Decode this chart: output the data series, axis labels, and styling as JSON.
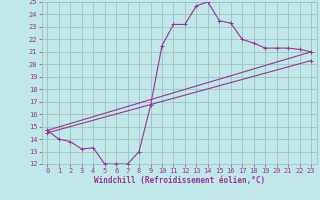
{
  "xlabel": "Windchill (Refroidissement éolien,°C)",
  "bg_color": "#c0e8e8",
  "line_color": "#993399",
  "grid_color": "#99bbbb",
  "xlim": [
    -0.5,
    23.5
  ],
  "ylim": [
    12,
    25
  ],
  "xticks": [
    0,
    1,
    2,
    3,
    4,
    5,
    6,
    7,
    8,
    9,
    10,
    11,
    12,
    13,
    14,
    15,
    16,
    17,
    18,
    19,
    20,
    21,
    22,
    23
  ],
  "yticks": [
    12,
    13,
    14,
    15,
    16,
    17,
    18,
    19,
    20,
    21,
    22,
    23,
    24,
    25
  ],
  "series1_x": [
    0,
    1,
    2,
    3,
    4,
    5,
    6,
    7,
    8,
    9,
    10,
    11,
    12,
    13,
    14,
    15,
    16,
    17,
    18,
    19,
    20,
    21,
    22,
    23
  ],
  "series1_y": [
    14.7,
    14.0,
    13.8,
    13.2,
    13.3,
    12.0,
    12.0,
    12.0,
    13.0,
    16.7,
    21.5,
    23.2,
    23.2,
    24.7,
    25.0,
    23.5,
    23.3,
    22.0,
    21.7,
    21.3,
    21.3,
    21.3,
    21.2,
    21.0
  ],
  "series2_x": [
    0,
    23
  ],
  "series2_y": [
    14.7,
    21.0
  ],
  "series3_x": [
    0,
    23
  ],
  "series3_y": [
    14.5,
    20.3
  ]
}
